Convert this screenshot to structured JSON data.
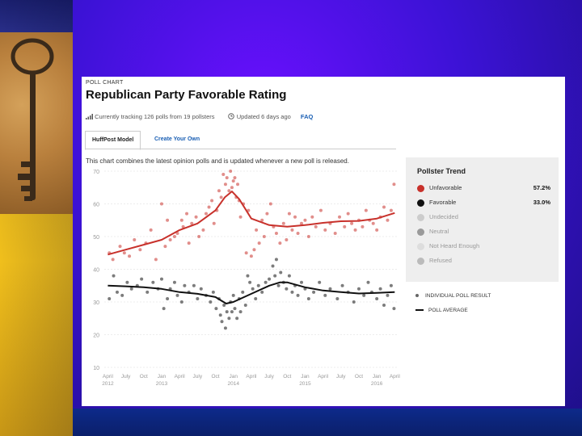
{
  "poll_chart_label": "POLL CHART",
  "title": "Republican Party Favorable Rating",
  "meta": {
    "tracking": "Currently tracking 126 polls from 19 pollsters",
    "updated": "Updated 6 days ago",
    "faq": "FAQ"
  },
  "tabs": [
    {
      "label": "HuffPost Model",
      "active": true
    },
    {
      "label": "Create Your Own",
      "active": false
    }
  ],
  "description": "This chart combines the latest opinion polls and is updated whenever a new poll is released.",
  "legend": {
    "title": "Pollster Trend",
    "items": [
      {
        "label": "Unfavorable",
        "value": "57.2%",
        "color": "#c8312b"
      },
      {
        "label": "Favorable",
        "value": "33.0%",
        "color": "#111111"
      },
      {
        "label": "Undecided",
        "value": "",
        "color": "#cccccc"
      },
      {
        "label": "Neutral",
        "value": "",
        "color": "#9a9a9a"
      },
      {
        "label": "Not Heard Enough",
        "value": "",
        "color": "#dddddd"
      },
      {
        "label": "Refused",
        "value": "",
        "color": "#bbbbbb"
      }
    ]
  },
  "key": {
    "individual": "INDIVIDUAL POLL RESULT",
    "average": "POLL AVERAGE"
  },
  "chart_data": {
    "type": "line",
    "ylim": [
      10,
      70
    ],
    "yticks": [
      10,
      20,
      30,
      40,
      50,
      60,
      70
    ],
    "xlim": [
      2012.2,
      2016.28
    ],
    "grid": true,
    "x_ticks": [
      {
        "x": 2012.25,
        "label": "April",
        "year": "2012"
      },
      {
        "x": 2012.5,
        "label": "July",
        "year": ""
      },
      {
        "x": 2012.75,
        "label": "Oct",
        "year": ""
      },
      {
        "x": 2013.0,
        "label": "Jan",
        "year": "2013"
      },
      {
        "x": 2013.25,
        "label": "April",
        "year": ""
      },
      {
        "x": 2013.5,
        "label": "July",
        "year": ""
      },
      {
        "x": 2013.75,
        "label": "Oct",
        "year": ""
      },
      {
        "x": 2014.0,
        "label": "Jan",
        "year": "2014"
      },
      {
        "x": 2014.25,
        "label": "April",
        "year": ""
      },
      {
        "x": 2014.5,
        "label": "July",
        "year": ""
      },
      {
        "x": 2014.75,
        "label": "Oct",
        "year": ""
      },
      {
        "x": 2015.0,
        "label": "Jan",
        "year": "2015"
      },
      {
        "x": 2015.25,
        "label": "April",
        "year": ""
      },
      {
        "x": 2015.5,
        "label": "July",
        "year": ""
      },
      {
        "x": 2015.75,
        "label": "Oct",
        "year": ""
      },
      {
        "x": 2016.0,
        "label": "Jan",
        "year": "2016"
      },
      {
        "x": 2016.25,
        "label": "April",
        "year": ""
      }
    ],
    "series": [
      {
        "name": "Unfavorable",
        "color": "#c8312b",
        "trend": [
          [
            2012.25,
            44.5
          ],
          [
            2012.5,
            46
          ],
          [
            2012.75,
            47.5
          ],
          [
            2013.0,
            49
          ],
          [
            2013.25,
            52
          ],
          [
            2013.5,
            54
          ],
          [
            2013.75,
            58
          ],
          [
            2013.88,
            62
          ],
          [
            2013.98,
            63.8
          ],
          [
            2014.08,
            61.5
          ],
          [
            2014.25,
            55.5
          ],
          [
            2014.5,
            53.5
          ],
          [
            2014.75,
            53
          ],
          [
            2015.0,
            53.5
          ],
          [
            2015.25,
            54.2
          ],
          [
            2015.5,
            54.7
          ],
          [
            2015.75,
            54.8
          ],
          [
            2016.0,
            55.5
          ],
          [
            2016.25,
            57.2
          ]
        ],
        "polls": [
          [
            2012.27,
            45
          ],
          [
            2012.32,
            43
          ],
          [
            2012.42,
            47
          ],
          [
            2012.48,
            45
          ],
          [
            2012.55,
            44
          ],
          [
            2012.62,
            49
          ],
          [
            2012.7,
            46
          ],
          [
            2012.78,
            48
          ],
          [
            2012.85,
            52
          ],
          [
            2012.92,
            43
          ],
          [
            2013.0,
            60
          ],
          [
            2013.05,
            47
          ],
          [
            2013.08,
            55
          ],
          [
            2013.12,
            49
          ],
          [
            2013.18,
            50
          ],
          [
            2013.22,
            51
          ],
          [
            2013.28,
            55
          ],
          [
            2013.3,
            53
          ],
          [
            2013.35,
            57
          ],
          [
            2013.38,
            48
          ],
          [
            2013.42,
            54
          ],
          [
            2013.48,
            56
          ],
          [
            2013.52,
            50
          ],
          [
            2013.58,
            52
          ],
          [
            2013.62,
            57
          ],
          [
            2013.66,
            59
          ],
          [
            2013.7,
            61
          ],
          [
            2013.73,
            54
          ],
          [
            2013.77,
            58
          ],
          [
            2013.8,
            64
          ],
          [
            2013.83,
            62
          ],
          [
            2013.86,
            69
          ],
          [
            2013.89,
            66
          ],
          [
            2013.91,
            68
          ],
          [
            2013.94,
            64
          ],
          [
            2013.96,
            70
          ],
          [
            2013.98,
            65
          ],
          [
            2014.0,
            67
          ],
          [
            2014.02,
            68
          ],
          [
            2014.04,
            62
          ],
          [
            2014.06,
            66
          ],
          [
            2014.08,
            61
          ],
          [
            2014.1,
            56
          ],
          [
            2014.14,
            60
          ],
          [
            2014.18,
            45
          ],
          [
            2014.21,
            58
          ],
          [
            2014.25,
            44
          ],
          [
            2014.29,
            46
          ],
          [
            2014.32,
            52
          ],
          [
            2014.36,
            48
          ],
          [
            2014.4,
            55
          ],
          [
            2014.43,
            50
          ],
          [
            2014.47,
            57
          ],
          [
            2014.52,
            60
          ],
          [
            2014.56,
            53
          ],
          [
            2014.6,
            51
          ],
          [
            2014.65,
            48
          ],
          [
            2014.7,
            54
          ],
          [
            2014.74,
            49
          ],
          [
            2014.78,
            57
          ],
          [
            2014.82,
            52
          ],
          [
            2014.86,
            56
          ],
          [
            2014.9,
            51
          ],
          [
            2014.95,
            54
          ],
          [
            2015.0,
            55
          ],
          [
            2015.05,
            50
          ],
          [
            2015.1,
            56
          ],
          [
            2015.15,
            53
          ],
          [
            2015.22,
            58
          ],
          [
            2015.28,
            52
          ],
          [
            2015.35,
            54
          ],
          [
            2015.42,
            51
          ],
          [
            2015.48,
            56
          ],
          [
            2015.55,
            53
          ],
          [
            2015.6,
            57
          ],
          [
            2015.65,
            54
          ],
          [
            2015.7,
            52
          ],
          [
            2015.75,
            55
          ],
          [
            2015.8,
            53
          ],
          [
            2015.85,
            58
          ],
          [
            2015.9,
            55
          ],
          [
            2015.95,
            54
          ],
          [
            2016.0,
            52
          ],
          [
            2016.05,
            56
          ],
          [
            2016.1,
            59
          ],
          [
            2016.15,
            55
          ],
          [
            2016.2,
            58
          ],
          [
            2016.24,
            66
          ]
        ]
      },
      {
        "name": "Favorable",
        "color": "#111111",
        "trend": [
          [
            2012.25,
            35
          ],
          [
            2012.5,
            34.8
          ],
          [
            2012.75,
            34.5
          ],
          [
            2013.0,
            34
          ],
          [
            2013.25,
            33
          ],
          [
            2013.5,
            32.5
          ],
          [
            2013.75,
            31.5
          ],
          [
            2013.9,
            29.5
          ],
          [
            2014.0,
            30
          ],
          [
            2014.25,
            32.5
          ],
          [
            2014.5,
            35
          ],
          [
            2014.65,
            36
          ],
          [
            2014.75,
            36
          ],
          [
            2015.0,
            34.5
          ],
          [
            2015.25,
            33.5
          ],
          [
            2015.5,
            33
          ],
          [
            2015.75,
            32.6
          ],
          [
            2016.0,
            32.8
          ],
          [
            2016.25,
            33
          ]
        ],
        "polls": [
          [
            2012.27,
            31
          ],
          [
            2012.33,
            38
          ],
          [
            2012.38,
            33
          ],
          [
            2012.45,
            32
          ],
          [
            2012.52,
            36
          ],
          [
            2012.58,
            34
          ],
          [
            2012.66,
            35
          ],
          [
            2012.72,
            37
          ],
          [
            2012.8,
            33
          ],
          [
            2012.88,
            36
          ],
          [
            2012.95,
            34
          ],
          [
            2013.0,
            37
          ],
          [
            2013.03,
            28
          ],
          [
            2013.08,
            31
          ],
          [
            2013.12,
            34
          ],
          [
            2013.18,
            36
          ],
          [
            2013.22,
            32
          ],
          [
            2013.28,
            30
          ],
          [
            2013.32,
            35
          ],
          [
            2013.38,
            33
          ],
          [
            2013.45,
            35
          ],
          [
            2013.5,
            31
          ],
          [
            2013.55,
            34
          ],
          [
            2013.62,
            32
          ],
          [
            2013.68,
            30
          ],
          [
            2013.72,
            33
          ],
          [
            2013.76,
            28
          ],
          [
            2013.8,
            31
          ],
          [
            2013.82,
            26
          ],
          [
            2013.84,
            24
          ],
          [
            2013.87,
            29
          ],
          [
            2013.89,
            22
          ],
          [
            2013.91,
            27
          ],
          [
            2013.94,
            25
          ],
          [
            2013.96,
            30
          ],
          [
            2013.98,
            27
          ],
          [
            2014.0,
            32
          ],
          [
            2014.02,
            28
          ],
          [
            2014.05,
            25
          ],
          [
            2014.08,
            31
          ],
          [
            2014.1,
            27
          ],
          [
            2014.13,
            33
          ],
          [
            2014.17,
            29
          ],
          [
            2014.2,
            38
          ],
          [
            2014.23,
            36
          ],
          [
            2014.27,
            34
          ],
          [
            2014.31,
            31
          ],
          [
            2014.35,
            35
          ],
          [
            2014.4,
            33
          ],
          [
            2014.45,
            36
          ],
          [
            2014.5,
            37
          ],
          [
            2014.55,
            41
          ],
          [
            2014.58,
            38
          ],
          [
            2014.6,
            43
          ],
          [
            2014.63,
            35
          ],
          [
            2014.66,
            39
          ],
          [
            2014.7,
            36
          ],
          [
            2014.74,
            34
          ],
          [
            2014.78,
            38
          ],
          [
            2014.82,
            33
          ],
          [
            2014.86,
            35
          ],
          [
            2014.9,
            32
          ],
          [
            2014.95,
            36
          ],
          [
            2015.0,
            34
          ],
          [
            2015.05,
            31
          ],
          [
            2015.12,
            33
          ],
          [
            2015.2,
            36
          ],
          [
            2015.28,
            32
          ],
          [
            2015.35,
            34
          ],
          [
            2015.45,
            31
          ],
          [
            2015.52,
            35
          ],
          [
            2015.6,
            33
          ],
          [
            2015.68,
            30
          ],
          [
            2015.75,
            34
          ],
          [
            2015.82,
            32
          ],
          [
            2015.88,
            36
          ],
          [
            2015.93,
            33
          ],
          [
            2016.0,
            31
          ],
          [
            2016.05,
            34
          ],
          [
            2016.1,
            29
          ],
          [
            2016.15,
            32
          ],
          [
            2016.2,
            35
          ],
          [
            2016.24,
            28
          ]
        ]
      }
    ]
  }
}
